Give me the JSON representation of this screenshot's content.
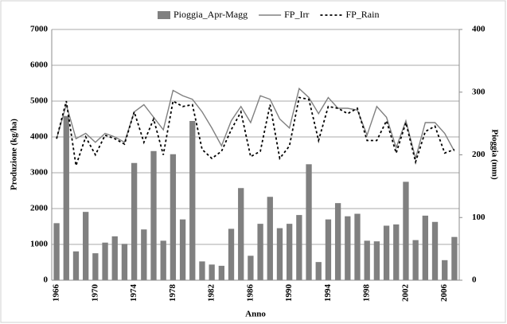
{
  "chart_data": {
    "type": "bar",
    "x_label": "Anno",
    "y_label": "Produzione (kg/ha)",
    "y2_label": "Pioggia (mm)",
    "categories": [
      "1966",
      null,
      null,
      null,
      "1970",
      null,
      null,
      null,
      "1974",
      null,
      null,
      null,
      "1978",
      null,
      null,
      null,
      "1982",
      null,
      null,
      null,
      "1986",
      null,
      null,
      null,
      "1990",
      null,
      null,
      null,
      "1994",
      null,
      null,
      null,
      "1998",
      null,
      null,
      null,
      "2002",
      null,
      null,
      null,
      "2006",
      null
    ],
    "series": [
      {
        "name": "Pioggia_Apr-Magg",
        "type": "bar",
        "axis": "y2",
        "color": "#808080",
        "values": [
          91,
          262,
          46,
          109,
          43,
          60,
          70,
          58,
          187,
          81,
          206,
          63,
          201,
          97,
          254,
          30,
          25,
          23,
          82,
          147,
          39,
          90,
          133,
          83,
          90,
          104,
          185,
          29,
          97,
          123,
          102,
          106,
          63,
          62,
          87,
          89,
          157,
          64,
          103,
          93,
          32,
          69
        ]
      },
      {
        "name": "FP_Irr",
        "type": "line",
        "axis": "y",
        "color": "#808080",
        "dashed": false,
        "values": [
          3950,
          4900,
          3950,
          4100,
          3850,
          4100,
          4000,
          3850,
          4700,
          4900,
          4550,
          4200,
          5300,
          5150,
          5050,
          4700,
          4250,
          3750,
          4450,
          4850,
          4400,
          5150,
          5050,
          4500,
          4250,
          5350,
          5100,
          4650,
          5100,
          4800,
          4800,
          4750,
          4050,
          4850,
          4550,
          3700,
          4450,
          3400,
          4400,
          4400,
          4100,
          3600
        ]
      },
      {
        "name": "FP_Rain",
        "type": "line",
        "axis": "y",
        "color": "#000000",
        "dashed": true,
        "values": [
          3950,
          5000,
          3200,
          4000,
          3500,
          4050,
          3950,
          3800,
          4700,
          3850,
          4500,
          3500,
          5000,
          4850,
          4900,
          3650,
          3400,
          3600,
          4200,
          4700,
          3450,
          3600,
          4900,
          3400,
          3750,
          5100,
          5050,
          3900,
          4850,
          4800,
          4650,
          4800,
          3900,
          3900,
          4450,
          3550,
          4400,
          3300,
          4150,
          4300,
          3550,
          3650
        ]
      }
    ],
    "ylim": [
      0,
      7000
    ],
    "yticks": [
      0,
      1000,
      2000,
      3000,
      4000,
      5000,
      6000,
      7000
    ],
    "y2lim": [
      0,
      400
    ],
    "y2ticks": [
      0,
      100,
      200,
      300,
      400
    ],
    "grid": true,
    "legend": "top"
  }
}
